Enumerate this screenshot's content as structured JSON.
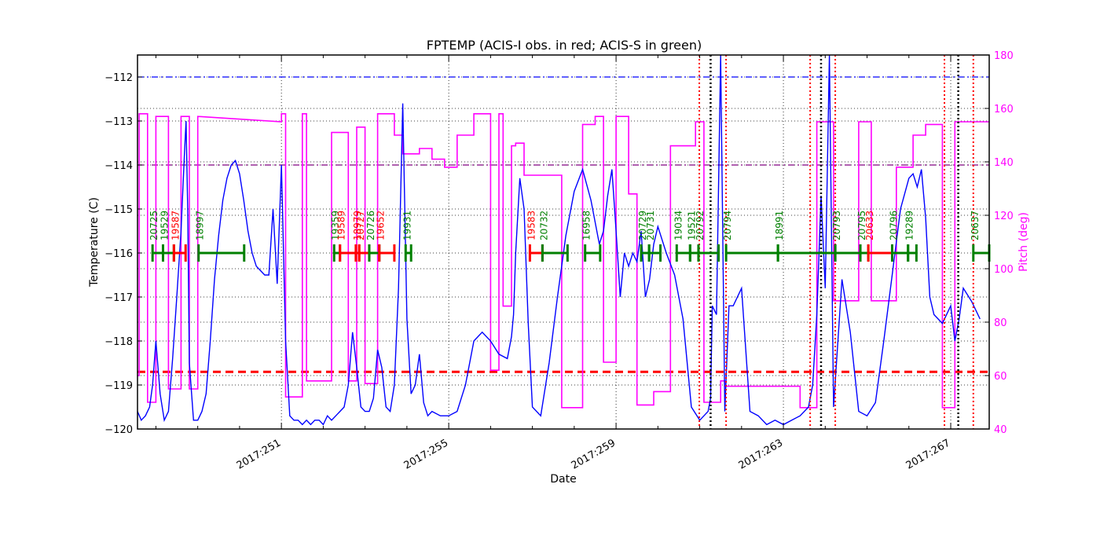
{
  "chart_data": {
    "type": "line",
    "title": "FPTEMP (ACIS-I obs. in red; ACIS-S in green)",
    "xlabel": "Date",
    "ylabel": "Temperature (C)",
    "y2label": "Pitch (deg)",
    "xlim_days": [
      247.56,
      267.92
    ],
    "ylim": [
      -120,
      -111.5
    ],
    "y2lim": [
      40,
      180
    ],
    "x_ticks": [
      "2017:251",
      "2017:255",
      "2017:259",
      "2017:263",
      "2017:267"
    ],
    "x_tick_days": [
      251,
      255,
      259,
      263,
      267
    ],
    "y_ticks": [
      -120,
      -119,
      -118,
      -117,
      -116,
      -115,
      -114,
      -113,
      -112
    ],
    "y2_ticks": [
      40,
      60,
      80,
      100,
      120,
      140,
      160,
      180
    ],
    "grid": true,
    "reference_lines": [
      {
        "name": "planning-limit",
        "value": -112.0,
        "color": "#0000ff",
        "style": "dashdot"
      },
      {
        "name": "yellow-limit",
        "value": -114.0,
        "color": "#800080",
        "style": "dashdot"
      },
      {
        "name": "acis-i-limit",
        "value": -118.7,
        "color": "#ff0000",
        "style": "dashed"
      }
    ],
    "colors": {
      "temperature": "#0000ff",
      "pitch": "#ff00ff",
      "acis_i": "#ff0000",
      "acis_s": "#008000",
      "axis2": "#ff00ff"
    },
    "vertical_lines": {
      "red_dotted_x_days": [
        260.99,
        261.63,
        263.64,
        264.24,
        266.85,
        267.54
      ],
      "black_dotted_x_days": [
        261.26,
        263.9,
        267.18
      ]
    },
    "observations": [
      {
        "obsid": "20725",
        "instrument": "ACIS-S",
        "start": 247.92,
        "stop": 248.17
      },
      {
        "obsid": "19529",
        "instrument": "ACIS-S",
        "start": 248.17,
        "stop": 248.43
      },
      {
        "obsid": "19587",
        "instrument": "ACIS-I",
        "start": 248.43,
        "stop": 248.71
      },
      {
        "obsid": "18997",
        "instrument": "ACIS-S",
        "start": 249.02,
        "stop": 250.11
      },
      {
        "obsid": "19359",
        "instrument": "ACIS-S",
        "start": 252.26,
        "stop": 252.4
      },
      {
        "obsid": "19589",
        "instrument": "ACIS-I",
        "start": 252.4,
        "stop": 252.78
      },
      {
        "obsid": "18979",
        "instrument": "ACIS-I",
        "start": 252.78,
        "stop": 252.86
      },
      {
        "obsid": "20727",
        "instrument": "ACIS-I",
        "start": 252.86,
        "stop": 253.1
      },
      {
        "obsid": "20726",
        "instrument": "ACIS-S",
        "start": 253.1,
        "stop": 253.34
      },
      {
        "obsid": "19652",
        "instrument": "ACIS-I",
        "start": 253.34,
        "stop": 253.7
      },
      {
        "obsid": "19931",
        "instrument": "ACIS-S",
        "start": 253.97,
        "stop": 254.1
      },
      {
        "obsid": "19583",
        "instrument": "ACIS-I",
        "start": 256.94,
        "stop": 257.24
      },
      {
        "obsid": "20732",
        "instrument": "ACIS-S",
        "start": 257.24,
        "stop": 257.84
      },
      {
        "obsid": "16958",
        "instrument": "ACIS-S",
        "start": 258.26,
        "stop": 258.62
      },
      {
        "obsid": "20729",
        "instrument": "ACIS-S",
        "start": 259.6,
        "stop": 259.79
      },
      {
        "obsid": "20731",
        "instrument": "ACIS-S",
        "start": 259.79,
        "stop": 260.06
      },
      {
        "obsid": "19034",
        "instrument": "ACIS-S",
        "start": 260.45,
        "stop": 260.77
      },
      {
        "obsid": "19521",
        "instrument": "ACIS-S",
        "start": 260.77,
        "stop": 260.97
      },
      {
        "obsid": "20792",
        "instrument": "ACIS-S",
        "start": 260.97,
        "stop": 261.45
      },
      {
        "obsid": "20794",
        "instrument": "ACIS-S",
        "start": 261.63,
        "stop": 262.87
      },
      {
        "obsid": "18991",
        "instrument": "ACIS-S",
        "start": 262.87,
        "stop": 264.24
      },
      {
        "obsid": "20793",
        "instrument": "ACIS-S",
        "start": 264.24,
        "stop": 264.84
      },
      {
        "obsid": "20795",
        "instrument": "ACIS-S",
        "start": 264.84,
        "stop": 265.03
      },
      {
        "obsid": "20633",
        "instrument": "ACIS-I",
        "start": 265.03,
        "stop": 265.6
      },
      {
        "obsid": "20796",
        "instrument": "ACIS-S",
        "start": 265.6,
        "stop": 265.98
      },
      {
        "obsid": "19289",
        "instrument": "ACIS-S",
        "start": 265.98,
        "stop": 266.18
      },
      {
        "obsid": "20637",
        "instrument": "ACIS-S",
        "start": 267.54,
        "stop": 267.92
      }
    ],
    "temperature_series": {
      "x_days": [
        247.56,
        247.65,
        247.75,
        247.85,
        247.92,
        248.0,
        248.1,
        248.2,
        248.3,
        248.4,
        248.5,
        248.6,
        248.68,
        248.72,
        248.76,
        248.8,
        248.9,
        249.0,
        249.1,
        249.2,
        249.3,
        249.4,
        249.5,
        249.6,
        249.7,
        249.8,
        249.9,
        250.0,
        250.1,
        250.2,
        250.3,
        250.4,
        250.5,
        250.6,
        250.7,
        250.8,
        250.9,
        251.0,
        251.1,
        251.2,
        251.3,
        251.4,
        251.5,
        251.6,
        251.7,
        251.8,
        251.9,
        252.0,
        252.1,
        252.2,
        252.3,
        252.4,
        252.5,
        252.6,
        252.7,
        252.8,
        252.9,
        253.0,
        253.1,
        253.2,
        253.3,
        253.4,
        253.5,
        253.6,
        253.7,
        253.8,
        253.9,
        254.0,
        254.1,
        254.2,
        254.3,
        254.4,
        254.5,
        254.6,
        254.8,
        255.0,
        255.2,
        255.4,
        255.6,
        255.8,
        256.0,
        256.2,
        256.4,
        256.5,
        256.55,
        256.6,
        256.7,
        256.8,
        256.9,
        257.0,
        257.2,
        257.4,
        257.6,
        257.8,
        258.0,
        258.2,
        258.4,
        258.6,
        258.7,
        258.8,
        258.9,
        259.0,
        259.1,
        259.2,
        259.3,
        259.4,
        259.5,
        259.6,
        259.7,
        259.8,
        259.9,
        260.0,
        260.2,
        260.4,
        260.6,
        260.8,
        261.0,
        261.1,
        261.2,
        261.26,
        261.3,
        261.4,
        261.5,
        261.6,
        261.7,
        261.8,
        262.0,
        262.2,
        262.4,
        262.6,
        262.8,
        263.0,
        263.2,
        263.4,
        263.6,
        263.7,
        263.8,
        263.9,
        264.0,
        264.1,
        264.2,
        264.4,
        264.6,
        264.8,
        265.0,
        265.2,
        265.4,
        265.6,
        265.8,
        266.0,
        266.1,
        266.2,
        266.3,
        266.4,
        266.5,
        266.6,
        266.8,
        267.0,
        267.1,
        267.2,
        267.3,
        267.5,
        267.7,
        267.92
      ],
      "values": [
        -119.6,
        -119.8,
        -119.7,
        -119.5,
        -119.0,
        -118.0,
        -119.2,
        -119.8,
        -119.6,
        -118.4,
        -117.0,
        -115.5,
        -113.8,
        -113.0,
        -115.0,
        -118.5,
        -119.8,
        -119.8,
        -119.6,
        -119.2,
        -118.0,
        -116.6,
        -115.6,
        -114.8,
        -114.3,
        -114.0,
        -113.9,
        -114.2,
        -114.8,
        -115.5,
        -116.0,
        -116.3,
        -116.4,
        -116.5,
        -116.5,
        -115.0,
        -116.7,
        -114.0,
        -118.0,
        -119.7,
        -119.8,
        -119.8,
        -119.9,
        -119.8,
        -119.9,
        -119.8,
        -119.8,
        -119.9,
        -119.7,
        -119.8,
        -119.7,
        -119.6,
        -119.5,
        -119.0,
        -117.8,
        -118.6,
        -119.5,
        -119.6,
        -119.6,
        -119.3,
        -118.2,
        -118.6,
        -119.5,
        -119.6,
        -119.0,
        -116.8,
        -112.6,
        -117.5,
        -119.2,
        -119.0,
        -118.3,
        -119.4,
        -119.7,
        -119.6,
        -119.7,
        -119.7,
        -119.6,
        -119.0,
        -118.0,
        -117.8,
        -118.0,
        -118.3,
        -118.4,
        -117.9,
        -117.4,
        -116.0,
        -114.3,
        -115.0,
        -117.6,
        -119.5,
        -119.7,
        -118.5,
        -117.0,
        -115.6,
        -114.6,
        -114.1,
        -114.8,
        -115.8,
        -115.5,
        -114.7,
        -114.1,
        -115.5,
        -117.0,
        -116.0,
        -116.3,
        -116.0,
        -116.2,
        -115.5,
        -117.0,
        -116.6,
        -115.8,
        -115.4,
        -116.0,
        -116.5,
        -117.5,
        -119.5,
        -119.8,
        -119.7,
        -119.6,
        -119.3,
        -117.2,
        -117.4,
        -111.5,
        -119.6,
        -117.2,
        -117.2,
        -116.8,
        -119.6,
        -119.7,
        -119.9,
        -119.8,
        -119.9,
        -119.8,
        -119.7,
        -119.5,
        -119.0,
        -117.4,
        -114.7,
        -116.8,
        -111.5,
        -119.5,
        -116.6,
        -117.8,
        -119.6,
        -119.7,
        -119.4,
        -118.0,
        -116.5,
        -115.0,
        -114.3,
        -114.2,
        -114.5,
        -114.1,
        -115.2,
        -117.0,
        -117.4,
        -117.6,
        -117.2,
        -118.0,
        -117.5,
        -116.8,
        -117.1,
        -117.5
      ]
    },
    "pitch_series": {
      "x_days": [
        247.56,
        247.6,
        247.6,
        247.8,
        247.8,
        248.0,
        248.0,
        248.3,
        248.3,
        248.6,
        248.6,
        248.8,
        248.8,
        249.0,
        249.0,
        251.0,
        251.0,
        251.1,
        251.1,
        251.5,
        251.5,
        251.6,
        251.6,
        252.2,
        252.2,
        252.6,
        252.6,
        252.8,
        252.8,
        253.0,
        253.0,
        253.3,
        253.3,
        253.7,
        253.7,
        253.9,
        253.9,
        254.3,
        254.3,
        254.6,
        254.6,
        254.9,
        254.9,
        255.2,
        255.2,
        255.6,
        255.6,
        256.0,
        256.0,
        256.2,
        256.2,
        256.3,
        256.3,
        256.5,
        256.5,
        256.6,
        256.6,
        256.8,
        256.8,
        257.0,
        257.0,
        257.7,
        257.7,
        258.2,
        258.2,
        258.5,
        258.5,
        258.7,
        258.7,
        259.0,
        259.0,
        259.3,
        259.3,
        259.5,
        259.5,
        259.9,
        259.9,
        260.3,
        260.3,
        260.9,
        260.9,
        261.1,
        261.1,
        261.5,
        261.5,
        261.6,
        261.6,
        263.4,
        263.4,
        263.8,
        263.8,
        264.2,
        264.2,
        264.8,
        264.8,
        265.1,
        265.1,
        265.7,
        265.7,
        266.1,
        266.1,
        266.4,
        266.4,
        266.8,
        266.8,
        267.1,
        267.1,
        267.5,
        267.5,
        267.92
      ],
      "values": [
        60,
        60,
        158,
        158,
        50,
        50,
        157,
        157,
        55,
        55,
        157,
        157,
        55,
        55,
        157,
        155,
        158,
        158,
        52,
        52,
        158,
        158,
        58,
        58,
        151,
        151,
        58,
        58,
        153,
        153,
        57,
        57,
        158,
        158,
        150,
        150,
        143,
        143,
        145,
        145,
        141,
        141,
        138,
        138,
        150,
        150,
        158,
        158,
        62,
        62,
        158,
        158,
        86,
        86,
        146,
        146,
        147,
        147,
        135,
        135,
        135,
        135,
        48,
        48,
        154,
        154,
        157,
        157,
        65,
        65,
        157,
        157,
        128,
        128,
        49,
        49,
        54,
        54,
        146,
        146,
        155,
        155,
        50,
        50,
        58,
        58,
        56,
        56,
        48,
        48,
        155,
        155,
        88,
        88,
        155,
        155,
        88,
        88,
        138,
        138,
        150,
        150,
        154,
        154,
        48,
        48,
        155,
        155,
        155,
        155
      ]
    }
  }
}
